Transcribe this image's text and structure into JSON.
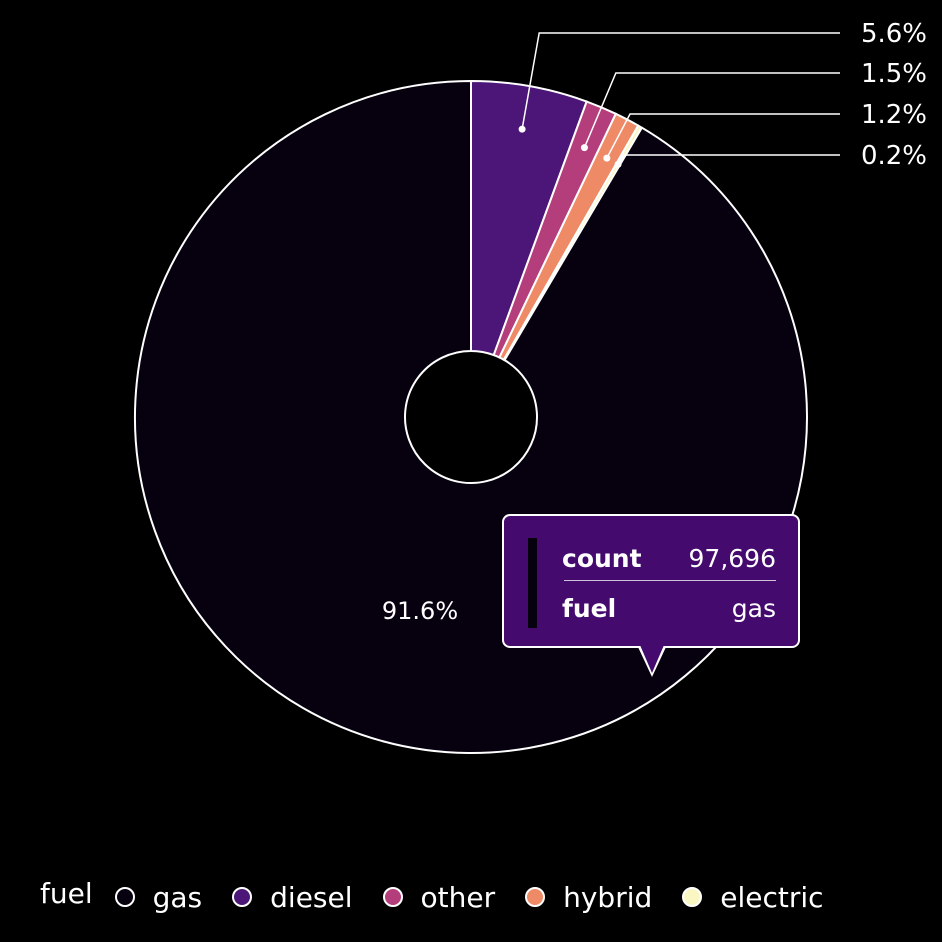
{
  "chart_data": {
    "type": "pie",
    "variant": "donut",
    "categories": [
      "gas",
      "diesel",
      "other",
      "hybrid",
      "electric"
    ],
    "values": [
      97696,
      5972,
      1600,
      1280,
      213
    ],
    "percent_labels": [
      "91.6%",
      "5.6%",
      "1.5%",
      "1.2%",
      "0.2%"
    ],
    "colors": [
      "#06000f",
      "#4b1677",
      "#b33e7b",
      "#ee8a66",
      "#fbf7c3"
    ],
    "legend": {
      "title": "fuel",
      "position": "bottom"
    }
  },
  "tooltip": {
    "rows": [
      {
        "key": "count",
        "value": "97,696"
      },
      {
        "key": "fuel",
        "value": "gas"
      }
    ]
  }
}
